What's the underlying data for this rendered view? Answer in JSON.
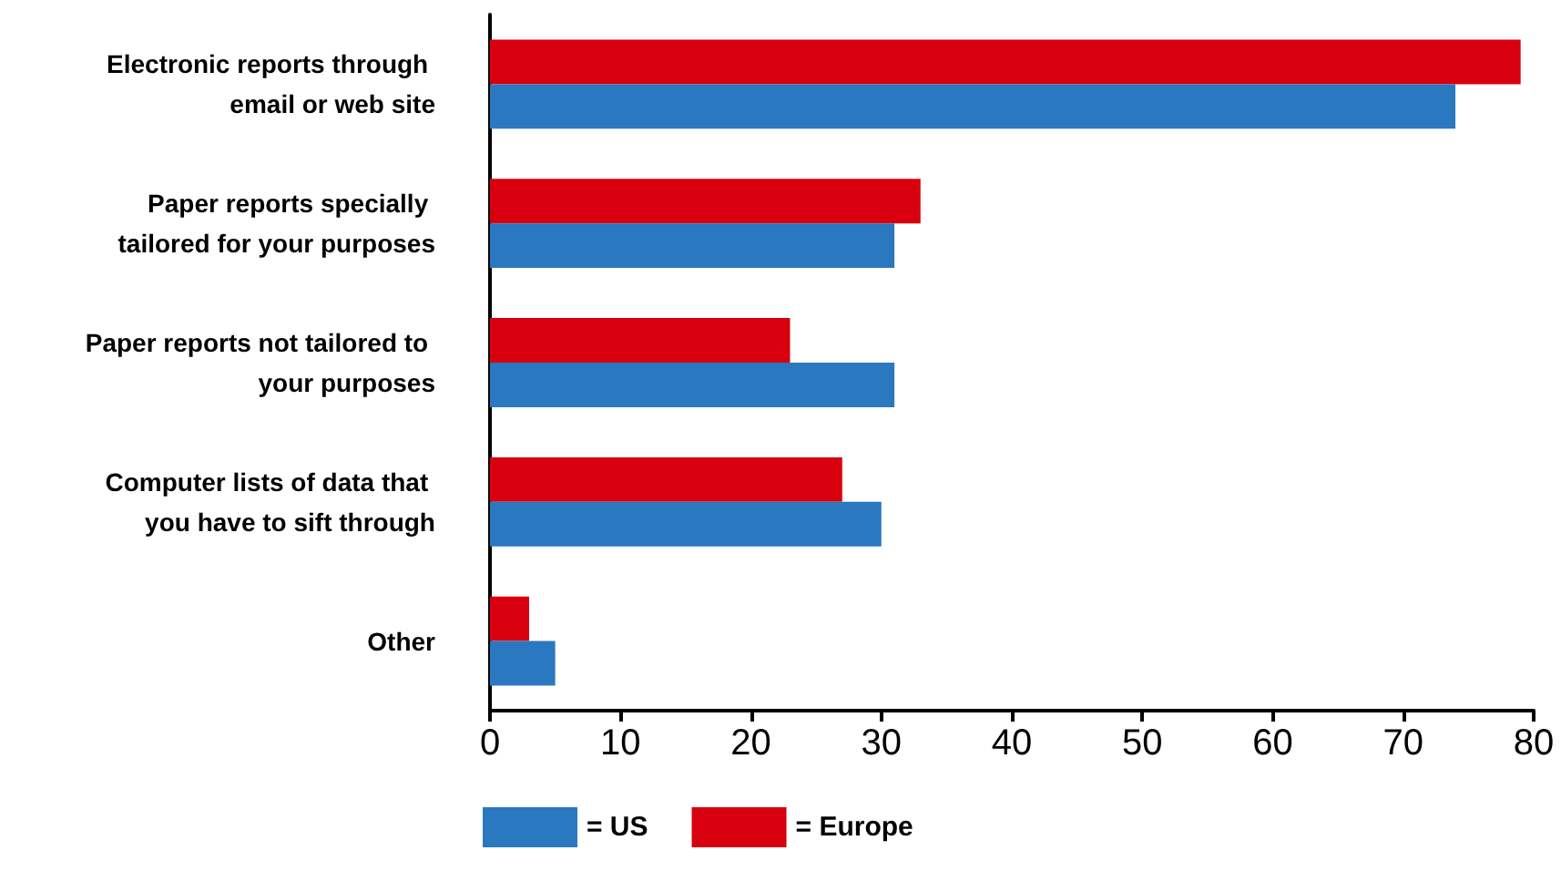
{
  "chart_data": {
    "type": "bar",
    "orientation": "horizontal",
    "categories": [
      "Electronic reports through email or web site",
      "Paper reports specially tailored for your purposes",
      "Paper reports not tailored to your purposes",
      "Computer lists of data that you have to sift through",
      "Other"
    ],
    "series": [
      {
        "name": "= Europe",
        "color": "#d8000e",
        "values": [
          79,
          33,
          23,
          27,
          3
        ]
      },
      {
        "name": "= US",
        "color": "#2a78bf",
        "values": [
          74,
          31,
          31,
          30,
          5
        ]
      }
    ],
    "xlim": [
      0,
      80
    ],
    "xticks": [
      0,
      10,
      20,
      30,
      40,
      50,
      60,
      70,
      80
    ],
    "grid": false,
    "legend": "bottom"
  }
}
